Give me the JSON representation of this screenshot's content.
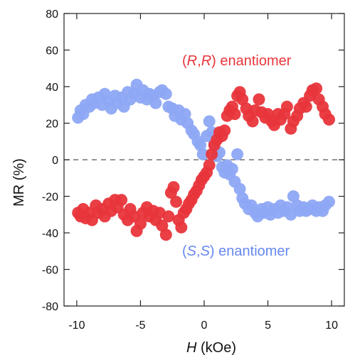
{
  "chart_data": {
    "type": "scatter",
    "title": "",
    "xlabel": {
      "italic": "H",
      "rest": " (kOe)"
    },
    "ylabel": "MR (%)",
    "xlim": [
      -11,
      11
    ],
    "ylim": [
      -80,
      80
    ],
    "xticks": [
      -10,
      -5,
      0,
      5,
      10
    ],
    "yticks": [
      -80,
      -60,
      -40,
      -20,
      0,
      20,
      40,
      60,
      80
    ],
    "reference_line": {
      "y": 0,
      "style": "dashed"
    },
    "grid": false,
    "legend": "none",
    "annotations": [
      {
        "series": "rr",
        "open": "(",
        "a": "R",
        "sep": ",",
        "b": "R",
        "close": ")",
        "suffix": " enantiomer",
        "color": "#e8353b"
      },
      {
        "series": "ss",
        "open": "(",
        "a": "S",
        "sep": ",",
        "b": "S",
        "close": ")",
        "suffix": " enantiomer",
        "color": "#6688ee"
      }
    ],
    "series": [
      {
        "id": "ss",
        "color": "#8ea8f4",
        "points": [
          [
            -9.9,
            23
          ],
          [
            -9.7,
            27
          ],
          [
            -9.5,
            25
          ],
          [
            -9.3,
            30
          ],
          [
            -9.0,
            29
          ],
          [
            -8.8,
            33
          ],
          [
            -8.6,
            31
          ],
          [
            -8.3,
            34
          ],
          [
            -8.0,
            30
          ],
          [
            -7.8,
            36
          ],
          [
            -7.5,
            32
          ],
          [
            -7.3,
            28
          ],
          [
            -7.0,
            35
          ],
          [
            -6.8,
            31
          ],
          [
            -6.5,
            34
          ],
          [
            -6.3,
            29
          ],
          [
            -6.0,
            37
          ],
          [
            -5.8,
            33
          ],
          [
            -5.5,
            36
          ],
          [
            -5.3,
            41
          ],
          [
            -5.0,
            34
          ],
          [
            -4.8,
            38
          ],
          [
            -4.5,
            33
          ],
          [
            -4.3,
            36
          ],
          [
            -4.0,
            35
          ],
          [
            -3.8,
            31
          ],
          [
            -3.5,
            37
          ],
          [
            -3.3,
            38
          ],
          [
            -3.0,
            36
          ],
          [
            -2.8,
            29
          ],
          [
            -2.5,
            28
          ],
          [
            -2.3,
            24
          ],
          [
            -2.0,
            27
          ],
          [
            -1.8,
            22
          ],
          [
            -1.5,
            25
          ],
          [
            -1.3,
            20
          ],
          [
            -1.0,
            16
          ],
          [
            -0.8,
            14
          ],
          [
            -0.5,
            10
          ],
          [
            -0.3,
            8
          ],
          [
            -0.1,
            3
          ],
          [
            0.2,
            13
          ],
          [
            0.4,
            21
          ],
          [
            0.6,
            15
          ],
          [
            0.8,
            9
          ],
          [
            1.0,
            2
          ],
          [
            1.2,
            4
          ],
          [
            1.4,
            -4
          ],
          [
            1.6,
            -7
          ],
          [
            1.8,
            -3
          ],
          [
            2.0,
            -8
          ],
          [
            2.2,
            -5
          ],
          [
            2.4,
            -12
          ],
          [
            2.6,
            3
          ],
          [
            2.8,
            -16
          ],
          [
            3.0,
            -21
          ],
          [
            3.2,
            -24
          ],
          [
            3.5,
            -27
          ],
          [
            3.7,
            -25
          ],
          [
            4.0,
            -29
          ],
          [
            4.2,
            -31
          ],
          [
            4.5,
            -27
          ],
          [
            4.7,
            -29
          ],
          [
            5.0,
            -26
          ],
          [
            5.2,
            -30
          ],
          [
            5.5,
            -27
          ],
          [
            5.8,
            -29
          ],
          [
            6.0,
            -25
          ],
          [
            6.3,
            -28
          ],
          [
            6.5,
            -26
          ],
          [
            6.8,
            -30
          ],
          [
            7.0,
            -20
          ],
          [
            7.3,
            -25
          ],
          [
            7.5,
            -28
          ],
          [
            7.8,
            -26
          ],
          [
            8.0,
            -28
          ],
          [
            8.3,
            -27
          ],
          [
            8.5,
            -25
          ],
          [
            8.8,
            -28
          ],
          [
            9.0,
            -26
          ],
          [
            9.3,
            -28
          ],
          [
            9.5,
            -25
          ],
          [
            9.8,
            -23
          ]
        ]
      },
      {
        "id": "rr",
        "color": "#e8353b",
        "points": [
          [
            -9.9,
            -29
          ],
          [
            -9.7,
            -31
          ],
          [
            -9.5,
            -27
          ],
          [
            -9.3,
            -32
          ],
          [
            -9.0,
            -29
          ],
          [
            -8.8,
            -33
          ],
          [
            -8.5,
            -25
          ],
          [
            -8.3,
            -29
          ],
          [
            -8.0,
            -27
          ],
          [
            -7.8,
            -31
          ],
          [
            -7.5,
            -24
          ],
          [
            -7.3,
            -28
          ],
          [
            -7.0,
            -22
          ],
          [
            -6.8,
            -26
          ],
          [
            -6.5,
            -22
          ],
          [
            -6.3,
            -30
          ],
          [
            -6.0,
            -33
          ],
          [
            -5.8,
            -27
          ],
          [
            -5.5,
            -31
          ],
          [
            -5.3,
            -39
          ],
          [
            -5.0,
            -35
          ],
          [
            -4.8,
            -29
          ],
          [
            -4.5,
            -26
          ],
          [
            -4.3,
            -31
          ],
          [
            -4.0,
            -28
          ],
          [
            -3.8,
            -33
          ],
          [
            -3.5,
            -29
          ],
          [
            -3.3,
            -36
          ],
          [
            -3.0,
            -41
          ],
          [
            -2.8,
            -31
          ],
          [
            -2.6,
            -18
          ],
          [
            -2.4,
            -15
          ],
          [
            -2.2,
            -23
          ],
          [
            -2.0,
            -33
          ],
          [
            -1.8,
            -37
          ],
          [
            -1.6,
            -29
          ],
          [
            -1.4,
            -27
          ],
          [
            -1.2,
            -24
          ],
          [
            -1.0,
            -22
          ],
          [
            -0.8,
            -19
          ],
          [
            -0.6,
            -17
          ],
          [
            -0.4,
            -14
          ],
          [
            -0.2,
            -11
          ],
          [
            0.0,
            -9
          ],
          [
            0.2,
            -7
          ],
          [
            0.4,
            -3
          ],
          [
            0.6,
            3
          ],
          [
            0.8,
            8
          ],
          [
            1.0,
            11
          ],
          [
            1.2,
            15
          ],
          [
            1.4,
            13
          ],
          [
            1.6,
            16
          ],
          [
            1.8,
            24
          ],
          [
            2.0,
            27
          ],
          [
            2.2,
            29
          ],
          [
            2.4,
            25
          ],
          [
            2.6,
            35
          ],
          [
            2.8,
            37
          ],
          [
            3.0,
            33
          ],
          [
            3.3,
            28
          ],
          [
            3.5,
            24
          ],
          [
            3.8,
            21
          ],
          [
            4.0,
            27
          ],
          [
            4.3,
            33
          ],
          [
            4.5,
            26
          ],
          [
            4.8,
            23
          ],
          [
            5.0,
            25
          ],
          [
            5.3,
            21
          ],
          [
            5.5,
            19
          ],
          [
            5.8,
            25
          ],
          [
            6.0,
            22
          ],
          [
            6.3,
            25
          ],
          [
            6.5,
            29
          ],
          [
            6.8,
            17
          ],
          [
            7.0,
            21
          ],
          [
            7.3,
            24
          ],
          [
            7.5,
            28
          ],
          [
            7.8,
            31
          ],
          [
            8.0,
            29
          ],
          [
            8.3,
            35
          ],
          [
            8.5,
            38
          ],
          [
            8.8,
            39
          ],
          [
            9.0,
            33
          ],
          [
            9.3,
            29
          ],
          [
            9.5,
            25
          ],
          [
            9.8,
            22
          ]
        ]
      }
    ]
  }
}
